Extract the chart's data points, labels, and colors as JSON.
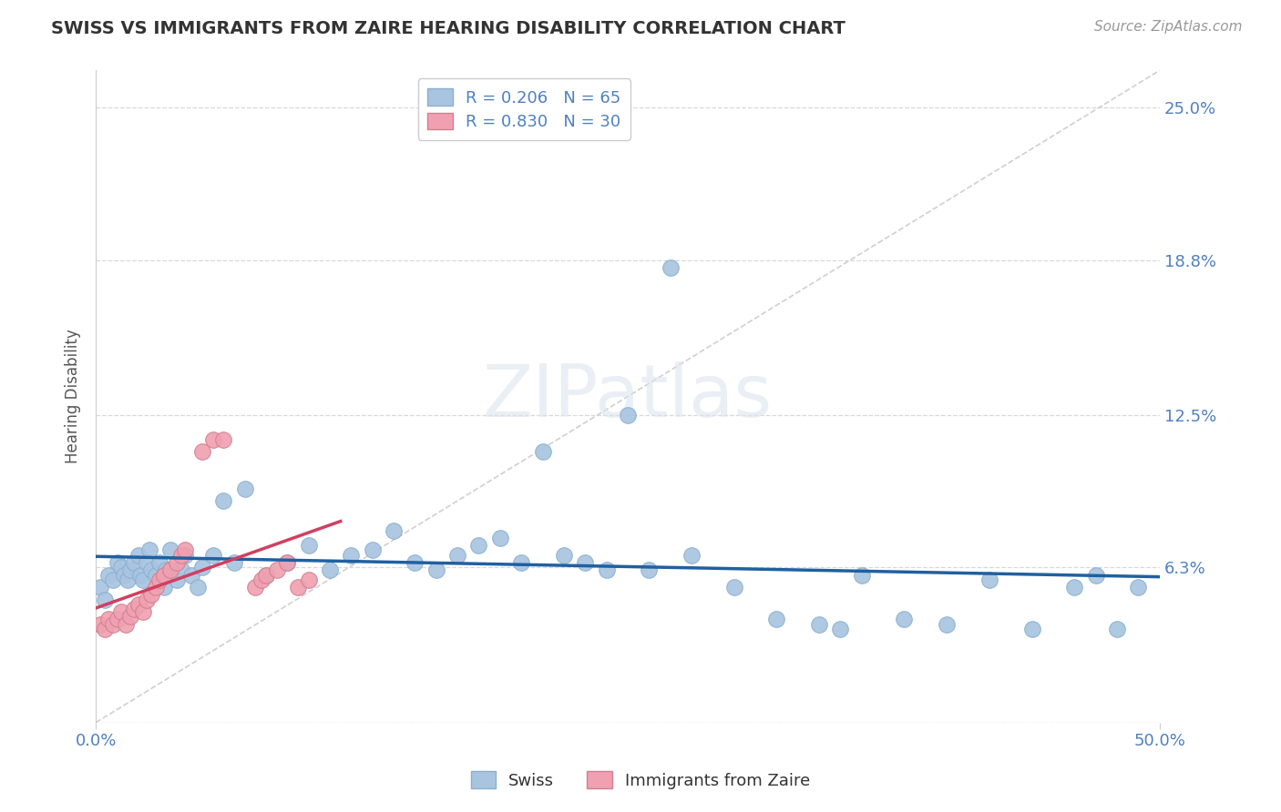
{
  "title": "SWISS VS IMMIGRANTS FROM ZAIRE HEARING DISABILITY CORRELATION CHART",
  "source": "Source: ZipAtlas.com",
  "ylabel": "Hearing Disability",
  "xlim": [
    0.0,
    0.5
  ],
  "ylim": [
    -0.01,
    0.28
  ],
  "plot_ylim": [
    0.0,
    0.265
  ],
  "ytick_vals": [
    0.0,
    0.063,
    0.125,
    0.188,
    0.25
  ],
  "ytick_labels": [
    "",
    "6.3%",
    "12.5%",
    "18.8%",
    "25.0%"
  ],
  "xtick_vals": [
    0.0,
    0.5
  ],
  "xtick_labels": [
    "0.0%",
    "50.0%"
  ],
  "title_fontsize": 14,
  "label_color": "#5080c0",
  "tick_color": "#5080c0",
  "background_color": "#ffffff",
  "swiss_color": "#a8c4e0",
  "zaire_color": "#f0a0b0",
  "swiss_line_color": "#2060a0",
  "zaire_line_color": "#d04060",
  "swiss_r": 0.206,
  "swiss_n": 65,
  "zaire_r": 0.83,
  "zaire_n": 30,
  "swiss_x": [
    0.002,
    0.004,
    0.006,
    0.008,
    0.01,
    0.012,
    0.013,
    0.015,
    0.016,
    0.018,
    0.02,
    0.021,
    0.022,
    0.024,
    0.025,
    0.026,
    0.028,
    0.03,
    0.032,
    0.033,
    0.035,
    0.038,
    0.04,
    0.042,
    0.045,
    0.048,
    0.05,
    0.055,
    0.06,
    0.065,
    0.07,
    0.08,
    0.09,
    0.1,
    0.11,
    0.12,
    0.13,
    0.14,
    0.15,
    0.16,
    0.17,
    0.18,
    0.19,
    0.2,
    0.21,
    0.22,
    0.23,
    0.24,
    0.25,
    0.26,
    0.27,
    0.28,
    0.3,
    0.32,
    0.34,
    0.35,
    0.36,
    0.38,
    0.4,
    0.42,
    0.44,
    0.46,
    0.47,
    0.48,
    0.49
  ],
  "swiss_y": [
    0.055,
    0.05,
    0.06,
    0.058,
    0.065,
    0.063,
    0.06,
    0.058,
    0.062,
    0.065,
    0.068,
    0.06,
    0.058,
    0.065,
    0.07,
    0.062,
    0.06,
    0.065,
    0.055,
    0.062,
    0.07,
    0.058,
    0.062,
    0.068,
    0.06,
    0.055,
    0.063,
    0.068,
    0.09,
    0.065,
    0.095,
    0.06,
    0.065,
    0.072,
    0.062,
    0.068,
    0.07,
    0.078,
    0.065,
    0.062,
    0.068,
    0.072,
    0.075,
    0.065,
    0.11,
    0.068,
    0.065,
    0.062,
    0.125,
    0.062,
    0.185,
    0.068,
    0.055,
    0.042,
    0.04,
    0.038,
    0.06,
    0.042,
    0.04,
    0.058,
    0.038,
    0.055,
    0.06,
    0.038,
    0.055
  ],
  "zaire_x": [
    0.002,
    0.004,
    0.006,
    0.008,
    0.01,
    0.012,
    0.014,
    0.016,
    0.018,
    0.02,
    0.022,
    0.024,
    0.026,
    0.028,
    0.03,
    0.032,
    0.035,
    0.038,
    0.04,
    0.042,
    0.05,
    0.055,
    0.06,
    0.075,
    0.078,
    0.08,
    0.085,
    0.09,
    0.095,
    0.1
  ],
  "zaire_y": [
    0.04,
    0.038,
    0.042,
    0.04,
    0.042,
    0.045,
    0.04,
    0.043,
    0.046,
    0.048,
    0.045,
    0.05,
    0.052,
    0.055,
    0.058,
    0.06,
    0.062,
    0.065,
    0.068,
    0.07,
    0.11,
    0.115,
    0.115,
    0.055,
    0.058,
    0.06,
    0.062,
    0.065,
    0.055,
    0.058
  ],
  "zaire_line_xrange": [
    0.0,
    0.115
  ],
  "diag_color": "#d0d0d0",
  "grid_color": "#d8d8d8",
  "watermark_color": "#dde5f0",
  "watermark_alpha": 0.6
}
